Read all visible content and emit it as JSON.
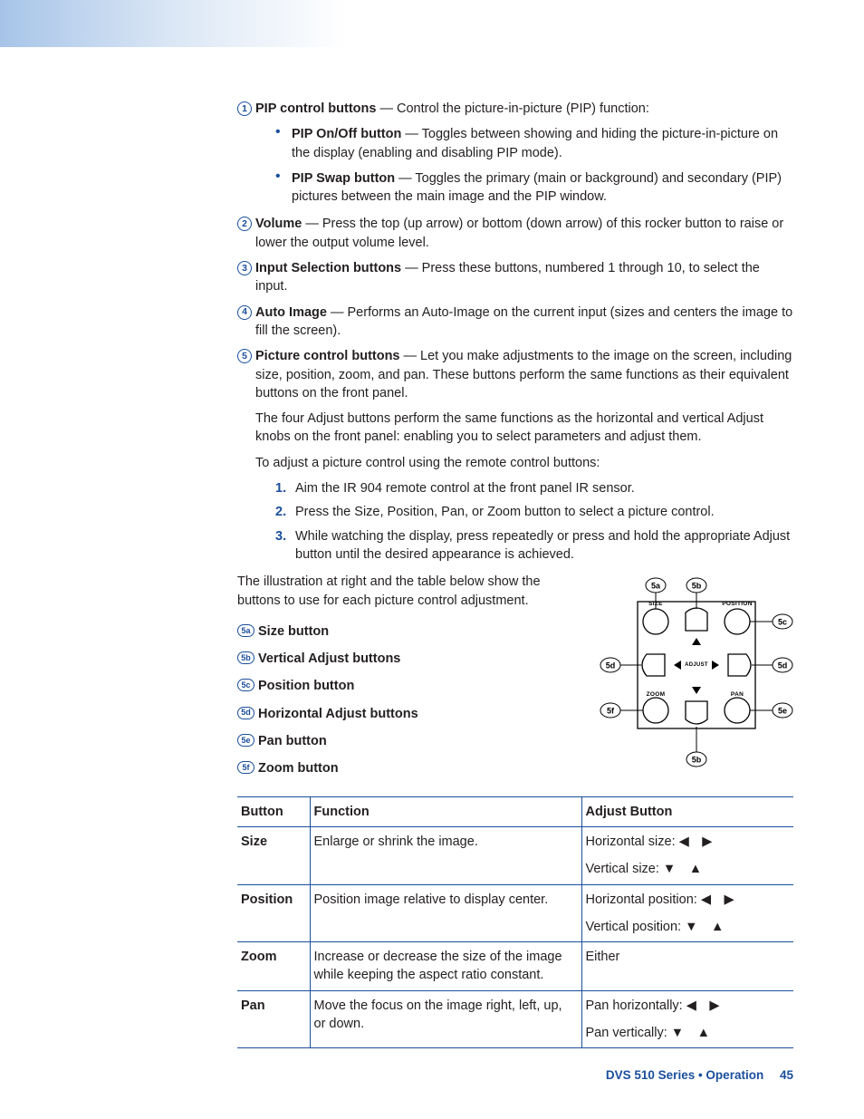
{
  "colors": {
    "accent": "#1a4e9c",
    "text": "#231f20",
    "gradient_start": "#a7c4e8",
    "background": "#ffffff"
  },
  "items": [
    {
      "num": "1",
      "title": "PIP control buttons",
      "desc": " — Control the picture-in-picture (PIP) function:",
      "bullets": [
        {
          "b": "PIP On/Off button",
          "t": " — Toggles between showing and hiding the picture-in-picture on the display (enabling and disabling PIP mode)."
        },
        {
          "b": "PIP Swap button",
          "t": " — Toggles the primary (main or background) and secondary (PIP) pictures between the main image and the PIP window."
        }
      ]
    },
    {
      "num": "2",
      "title": "Volume",
      "desc": " — Press the top (up arrow) or bottom (down arrow) of this rocker button to raise or lower the output volume level."
    },
    {
      "num": "3",
      "title": "Input Selection buttons",
      "desc": " — Press these buttons, numbered 1 through 10, to select the input."
    },
    {
      "num": "4",
      "title": "Auto Image",
      "desc": " — Performs an Auto-Image on the current input (sizes and centers the image to fill the screen)."
    },
    {
      "num": "5",
      "title": "Picture control buttons",
      "desc": " — Let you make adjustments to the image on the screen, including size, position, zoom, and pan. These buttons perform the same functions as their equivalent buttons on the front panel.",
      "extra": [
        "The four Adjust buttons perform the same functions as the horizontal and vertical Adjust knobs on the front panel: enabling you to select parameters and adjust them.",
        "To adjust a picture control using the remote control buttons:"
      ],
      "steps": [
        "Aim the IR 904 remote control at the front panel IR sensor.",
        "Press the Size, Position, Pan, or Zoom button to select a picture control.",
        "While watching the display, press repeatedly or press and hold the appropriate Adjust button until the desired appearance is achieved."
      ]
    }
  ],
  "illus_intro": "The illustration at right and the table below show the buttons to use for each picture control adjustment.",
  "legend": [
    {
      "num": "5a",
      "label": "Size button"
    },
    {
      "num": "5b",
      "label": "Vertical Adjust buttons"
    },
    {
      "num": "5c",
      "label": "Position button"
    },
    {
      "num": "5d",
      "label": "Horizontal Adjust buttons"
    },
    {
      "num": "5e",
      "label": "Pan button"
    },
    {
      "num": "5f",
      "label": "Zoom button"
    }
  ],
  "diagram": {
    "callouts": [
      "5a",
      "5b",
      "5c",
      "5d",
      "5d",
      "5e",
      "5f",
      "5b"
    ],
    "btn_labels": {
      "size": "SIZE",
      "position": "POSITION",
      "zoom": "ZOOM",
      "pan": "PAN",
      "adjust": "ADJUST"
    }
  },
  "table": {
    "headers": [
      "Button",
      "Function",
      "Adjust Button"
    ],
    "rows": [
      {
        "btn": "Size",
        "fn": "Enlarge or shrink the image.",
        "adj": [
          {
            "t": "Horizontal size: ",
            "a": "lr"
          },
          {
            "t": "Vertical size: ",
            "a": "du"
          }
        ]
      },
      {
        "btn": "Position",
        "fn": "Position image relative to display center.",
        "adj": [
          {
            "t": "Horizontal position: ",
            "a": "lr"
          },
          {
            "t": "Vertical position: ",
            "a": "du"
          }
        ]
      },
      {
        "btn": "Zoom",
        "fn": "Increase or decrease the size of the image while keeping the aspect ratio constant.",
        "adj": [
          {
            "t": "Either",
            "a": ""
          }
        ]
      },
      {
        "btn": "Pan",
        "fn": "Move the focus on the image right, left, up, or down.",
        "adj": [
          {
            "t": "Pan horizontally: ",
            "a": "lr"
          },
          {
            "t": "Pan vertically: ",
            "a": "du"
          }
        ]
      }
    ],
    "arrows": {
      "lr": "◀ ▶",
      "du": "▼ ▲"
    }
  },
  "footer": {
    "title": "DVS 510 Series • Operation",
    "page": "45"
  }
}
